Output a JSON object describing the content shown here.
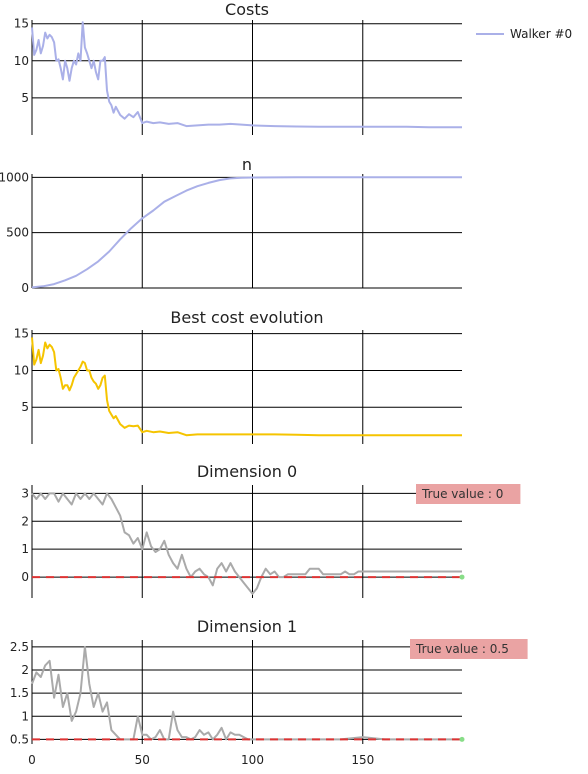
{
  "colors": {
    "walker": "#aab0e8",
    "best": "#f5c400",
    "dim": "#aaaaaa",
    "truth": "#dd3333",
    "truth_end": "#88dd88",
    "annotation_bg": "#eaa3a3",
    "grid": "#000000"
  },
  "legend": {
    "items": [
      {
        "label": "Walker #0"
      }
    ]
  },
  "chart_data": [
    {
      "type": "line",
      "title": "Costs",
      "xlim": [
        0,
        195
      ],
      "ylim": [
        0,
        15.5
      ],
      "yticks": [
        5,
        10,
        15
      ],
      "series": [
        {
          "name": "Walker #0",
          "x": [
            0,
            1,
            2,
            3,
            4,
            5,
            6,
            7,
            8,
            9,
            10,
            11,
            12,
            13,
            14,
            15,
            16,
            17,
            18,
            19,
            20,
            21,
            22,
            23,
            24,
            25,
            26,
            27,
            28,
            29,
            30,
            31,
            32,
            33,
            34,
            35,
            36,
            37,
            38,
            40,
            42,
            44,
            46,
            48,
            50,
            52,
            55,
            58,
            62,
            66,
            70,
            75,
            80,
            85,
            90,
            95,
            100,
            110,
            120,
            130,
            140,
            150,
            160,
            170,
            180,
            190,
            195
          ],
          "y": [
            14.5,
            10.8,
            11.5,
            12.8,
            11,
            12,
            13.8,
            13,
            13.5,
            13.2,
            12.5,
            10,
            10.2,
            9,
            7.5,
            10,
            9,
            7.3,
            9,
            10,
            9.5,
            11,
            10,
            15.2,
            11.8,
            11,
            10,
            9,
            10,
            8.5,
            7.5,
            10,
            10,
            10.5,
            6,
            4.5,
            4,
            3,
            3.8,
            2.7,
            2.2,
            2.8,
            2.4,
            3.1,
            1.6,
            1.8,
            1.6,
            1.7,
            1.5,
            1.6,
            1.2,
            1.3,
            1.4,
            1.4,
            1.5,
            1.4,
            1.3,
            1.2,
            1.15,
            1.1,
            1.1,
            1.1,
            1.1,
            1.1,
            1.05,
            1.05,
            1.05
          ]
        }
      ]
    },
    {
      "type": "line",
      "title": "n",
      "xlim": [
        0,
        195
      ],
      "ylim": [
        0,
        1030
      ],
      "yticks": [
        0,
        500,
        1000
      ],
      "series": [
        {
          "name": "Walker #0",
          "x": [
            0,
            5,
            10,
            15,
            20,
            25,
            30,
            35,
            40,
            45,
            50,
            55,
            60,
            65,
            70,
            75,
            80,
            85,
            90,
            95,
            100,
            110,
            120,
            140,
            160,
            180,
            195
          ],
          "y": [
            5,
            15,
            35,
            70,
            110,
            170,
            240,
            330,
            440,
            540,
            630,
            700,
            780,
            830,
            880,
            920,
            950,
            975,
            990,
            996,
            998,
            999,
            1000,
            1000,
            1000,
            1000,
            1000
          ]
        }
      ]
    },
    {
      "type": "line",
      "title": "Best cost evolution",
      "xlim": [
        0,
        195
      ],
      "ylim": [
        0,
        15.5
      ],
      "yticks": [
        5,
        10,
        15
      ],
      "series": [
        {
          "name": "",
          "x": [
            0,
            1,
            2,
            3,
            4,
            5,
            6,
            7,
            8,
            9,
            10,
            11,
            12,
            13,
            14,
            15,
            16,
            17,
            18,
            19,
            20,
            21,
            22,
            23,
            24,
            25,
            26,
            27,
            28,
            29,
            30,
            31,
            32,
            33,
            34,
            35,
            36,
            37,
            38,
            40,
            42,
            44,
            46,
            48,
            50,
            52,
            55,
            58,
            62,
            66,
            70,
            75,
            80,
            85,
            90,
            95,
            100,
            110,
            120,
            130,
            140,
            150,
            160,
            170,
            180,
            190,
            195
          ],
          "y": [
            14.5,
            10.8,
            11.5,
            12.8,
            11,
            12,
            13.8,
            13,
            13.5,
            13.2,
            12.5,
            10,
            10.2,
            9,
            7.5,
            8,
            8,
            7.3,
            8,
            9,
            9.5,
            10,
            10.5,
            11.2,
            11,
            10,
            10,
            9,
            8.5,
            8.2,
            7.5,
            8,
            9,
            9.3,
            6,
            4.5,
            4,
            3.5,
            3.8,
            2.7,
            2.2,
            2.5,
            2.4,
            2.5,
            1.6,
            1.8,
            1.6,
            1.7,
            1.5,
            1.6,
            1.2,
            1.3,
            1.3,
            1.3,
            1.3,
            1.3,
            1.3,
            1.3,
            1.25,
            1.2,
            1.2,
            1.2,
            1.2,
            1.2,
            1.2,
            1.2,
            1.2
          ]
        }
      ]
    },
    {
      "type": "line",
      "title": "Dimension 0",
      "xlim": [
        0,
        195
      ],
      "ylim": [
        -0.75,
        3.3
      ],
      "yticks": [
        0,
        1,
        2,
        3
      ],
      "annotation": "True value : 0",
      "truth": 0,
      "series": [
        {
          "name": "",
          "x": [
            0,
            2,
            4,
            6,
            8,
            10,
            12,
            14,
            16,
            18,
            20,
            22,
            24,
            26,
            28,
            30,
            32,
            34,
            36,
            38,
            40,
            42,
            44,
            46,
            48,
            50,
            52,
            54,
            56,
            58,
            60,
            62,
            64,
            66,
            68,
            70,
            72,
            74,
            76,
            78,
            80,
            82,
            84,
            86,
            88,
            90,
            92,
            94,
            96,
            98,
            100,
            102,
            104,
            106,
            108,
            110,
            112,
            114,
            116,
            118,
            120,
            122,
            124,
            126,
            128,
            130,
            132,
            134,
            136,
            138,
            140,
            142,
            144,
            146,
            148,
            150,
            155,
            160,
            170,
            180,
            190,
            195
          ],
          "y": [
            3,
            2.8,
            3,
            2.8,
            3,
            3,
            2.7,
            3,
            2.8,
            2.6,
            3,
            2.8,
            3,
            2.8,
            3,
            2.8,
            2.6,
            3,
            2.8,
            2.5,
            2.2,
            1.6,
            1.5,
            1.2,
            1.4,
            1,
            1.6,
            1.1,
            0.9,
            1,
            1.3,
            0.8,
            0.5,
            0.3,
            0.8,
            0.3,
            0,
            0.2,
            0.3,
            0.1,
            0,
            -0.3,
            0.3,
            0.5,
            0.2,
            0.5,
            0.2,
            0,
            -0.2,
            -0.4,
            -0.6,
            -0.4,
            0,
            0.3,
            0.1,
            0.2,
            0,
            0,
            0.1,
            0.1,
            0.1,
            0.1,
            0.1,
            0.3,
            0.3,
            0.3,
            0.1,
            0.1,
            0.1,
            0.1,
            0.1,
            0.2,
            0.1,
            0.1,
            0.2,
            0.2,
            0.2,
            0.2,
            0.2,
            0.2,
            0.2,
            0.2
          ]
        }
      ]
    },
    {
      "type": "line",
      "title": "Dimension 1",
      "xlim": [
        0,
        195
      ],
      "ylim": [
        0.4,
        2.65
      ],
      "yticks": [
        0.5,
        1,
        1.5,
        2,
        2.5
      ],
      "xticks": [
        0,
        50,
        100,
        150
      ],
      "annotation": "True value : 0.5",
      "truth": 0.5,
      "series": [
        {
          "name": "",
          "x": [
            0,
            2,
            4,
            6,
            8,
            10,
            12,
            14,
            16,
            18,
            20,
            22,
            24,
            26,
            28,
            30,
            32,
            34,
            36,
            38,
            40,
            42,
            44,
            46,
            48,
            50,
            52,
            54,
            56,
            58,
            60,
            62,
            64,
            66,
            68,
            70,
            72,
            74,
            76,
            78,
            80,
            82,
            84,
            86,
            88,
            90,
            92,
            94,
            96,
            98,
            100,
            105,
            110,
            115,
            120,
            130,
            140,
            150,
            160,
            170,
            180,
            190,
            195
          ],
          "y": [
            1.7,
            1.95,
            1.85,
            2.1,
            2.2,
            1.4,
            1.9,
            1.2,
            1.5,
            0.9,
            1.1,
            1.5,
            2.5,
            1.7,
            1.2,
            1.5,
            1.1,
            1.3,
            0.7,
            0.6,
            0.5,
            0.5,
            0.5,
            0.5,
            1.0,
            0.6,
            0.6,
            0.5,
            0.55,
            0.7,
            0.5,
            0.5,
            1.1,
            0.7,
            0.55,
            0.55,
            0.5,
            0.55,
            0.7,
            0.6,
            0.65,
            0.5,
            0.6,
            0.75,
            0.5,
            0.65,
            0.6,
            0.6,
            0.55,
            0.5,
            0.5,
            0.5,
            0.5,
            0.5,
            0.5,
            0.5,
            0.5,
            0.55,
            0.5,
            0.5,
            0.5,
            0.5,
            0.5
          ]
        }
      ]
    }
  ]
}
